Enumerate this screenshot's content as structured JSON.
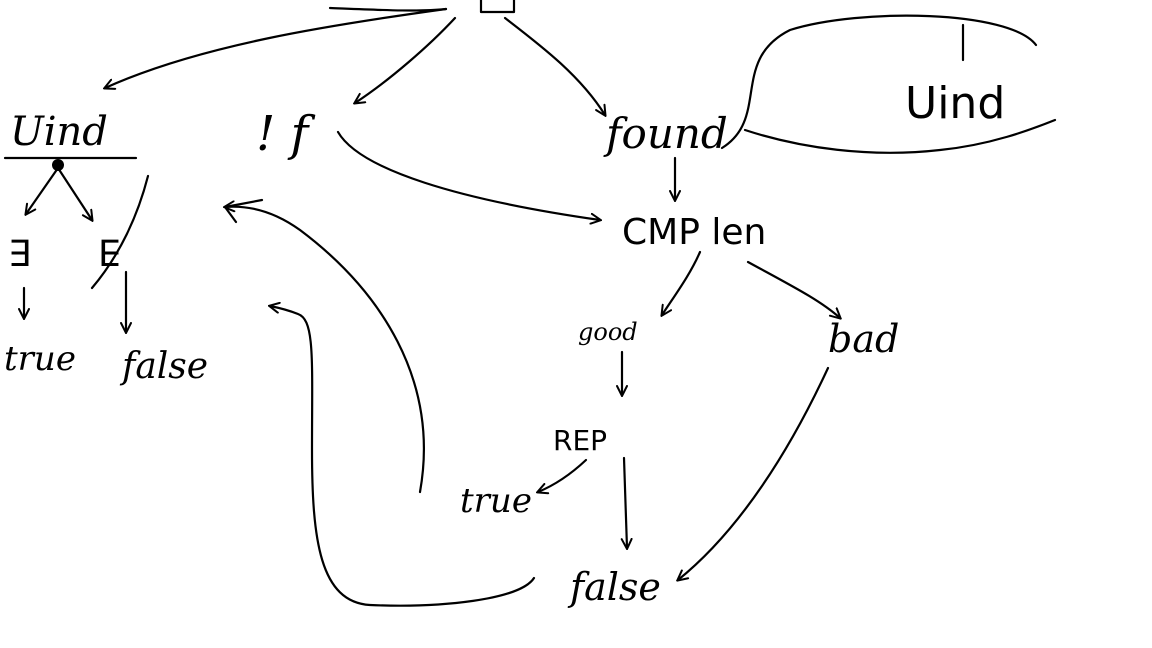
{
  "diagram": {
    "ink_color": "#000000",
    "background": "#ffffff",
    "labels": {
      "uind_left": "Uind",
      "exists_left": "∃",
      "exists_right": "∃",
      "true_left": "true",
      "false_left": "false",
      "not_f": "! f",
      "found": "found",
      "uind_right": "Uind",
      "cmp_len": "CMP len",
      "good": "good",
      "bad": "bad",
      "rep": "REP",
      "true_bottom": "true",
      "false_bottom": "false"
    }
  }
}
